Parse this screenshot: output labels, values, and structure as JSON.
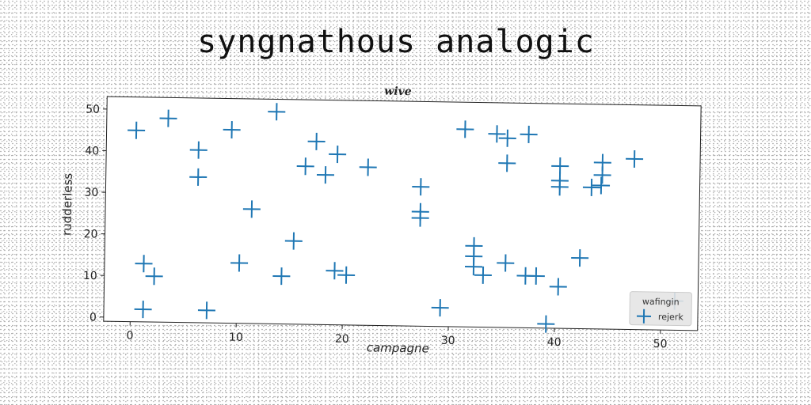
{
  "figure": {
    "suptitle": "syngnathous analogic"
  },
  "chart_data": {
    "type": "scatter",
    "title": "wive",
    "xlabel": "campagne",
    "ylabel": "rudderless",
    "xlim": [
      -2.5,
      53.5
    ],
    "ylim": [
      -1,
      53
    ],
    "xticks": [
      0,
      10,
      20,
      30,
      40,
      50
    ],
    "yticks": [
      0,
      10,
      20,
      30,
      40,
      50
    ],
    "grid": false,
    "legend": {
      "title": "wafingin",
      "position": "bottom-right"
    },
    "marker": "plus",
    "color": "#1f77b4",
    "series": [
      {
        "name": "rejerk",
        "points": [
          [
            0.3,
            45
          ],
          [
            3.3,
            48
          ],
          [
            6.2,
            40.5
          ],
          [
            6.2,
            34
          ],
          [
            9.3,
            45.5
          ],
          [
            13.5,
            50
          ],
          [
            17.3,
            43
          ],
          [
            16.3,
            37
          ],
          [
            18.2,
            35
          ],
          [
            19.3,
            40
          ],
          [
            22.2,
            37
          ],
          [
            11.3,
            26.5
          ],
          [
            1.2,
            13
          ],
          [
            2.2,
            10
          ],
          [
            1.2,
            2
          ],
          [
            7.2,
            2
          ],
          [
            10.2,
            13.5
          ],
          [
            14.2,
            10.5
          ],
          [
            15.3,
            19
          ],
          [
            19.2,
            12
          ],
          [
            20.3,
            11
          ],
          [
            27.2,
            32.5
          ],
          [
            27.2,
            26.5
          ],
          [
            27.2,
            25
          ],
          [
            29.2,
            3.5
          ],
          [
            31.3,
            46.5
          ],
          [
            34.3,
            45.5
          ],
          [
            35.3,
            44.5
          ],
          [
            35.3,
            38.5
          ],
          [
            37.3,
            45.5
          ],
          [
            32.3,
            18.5
          ],
          [
            32.3,
            16
          ],
          [
            32.3,
            13.5
          ],
          [
            33.2,
            11.5
          ],
          [
            35.3,
            14.5
          ],
          [
            37.2,
            11.5
          ],
          [
            38.2,
            11.5
          ],
          [
            40.3,
            38
          ],
          [
            40.3,
            34.5
          ],
          [
            40.3,
            33
          ],
          [
            43.3,
            33
          ],
          [
            44.2,
            33.5
          ],
          [
            44.3,
            36
          ],
          [
            44.3,
            39
          ],
          [
            47.3,
            40
          ],
          [
            42.3,
            16
          ],
          [
            40.3,
            9
          ],
          [
            39.2,
            0
          ],
          [
            51.3,
            6
          ]
        ]
      }
    ]
  }
}
